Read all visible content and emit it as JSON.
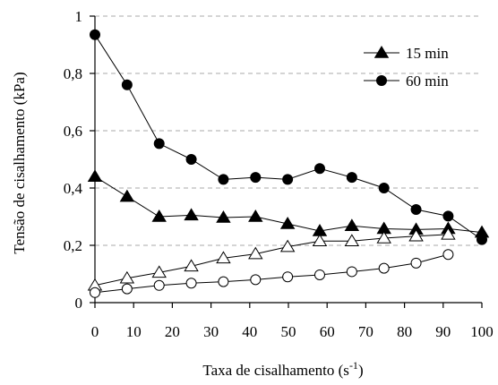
{
  "chart_data": {
    "type": "line",
    "xlabel": {
      "main": "Taxa de cisalhamento (s",
      "sup": "-1",
      "tail": ")"
    },
    "ylabel": "Tensão de cisalhamento (kPa)",
    "xlim": [
      0,
      100
    ],
    "ylim": [
      0,
      1
    ],
    "xticks": [
      0,
      10,
      20,
      30,
      40,
      50,
      60,
      70,
      80,
      90,
      100
    ],
    "yticks": [
      0,
      0.2,
      0.4,
      0.6,
      0.8,
      1
    ],
    "ytick_labels": [
      "0",
      "0,2",
      "0,4",
      "0,6",
      "0,8",
      "1"
    ],
    "grid": "horizontal-dashed",
    "legend_position": "top-right",
    "legend": [
      {
        "label": "15 min",
        "marker": "triangle-filled"
      },
      {
        "label": "60 min",
        "marker": "circle-filled"
      }
    ],
    "series": [
      {
        "name": "15 min",
        "marker": "triangle-filled",
        "x": [
          0,
          8.3,
          16.6,
          24.9,
          33.2,
          41.5,
          49.8,
          58.1,
          66.4,
          74.7,
          83,
          91.3,
          100
        ],
        "y": [
          0.44,
          0.37,
          0.3,
          0.305,
          0.297,
          0.3,
          0.275,
          0.25,
          0.268,
          0.258,
          0.255,
          0.258,
          0.245
        ]
      },
      {
        "name": "60 min",
        "marker": "circle-filled",
        "x": [
          0,
          8.3,
          16.6,
          24.9,
          33.2,
          41.5,
          49.8,
          58.1,
          66.4,
          74.7,
          83,
          91.3,
          100
        ],
        "y": [
          0.935,
          0.76,
          0.555,
          0.5,
          0.43,
          0.437,
          0.43,
          0.468,
          0.437,
          0.4,
          0.325,
          0.302,
          0.22
        ]
      },
      {
        "marker": "triangle-open",
        "x": [
          0,
          8.3,
          16.6,
          24.9,
          33.2,
          41.5,
          49.8,
          58.1,
          66.4,
          74.7,
          83,
          91.3
        ],
        "y": [
          0.06,
          0.085,
          0.105,
          0.127,
          0.155,
          0.17,
          0.195,
          0.215,
          0.215,
          0.225,
          0.232,
          0.238
        ]
      },
      {
        "marker": "circle-open",
        "x": [
          0,
          8.3,
          16.6,
          24.9,
          33.2,
          41.5,
          49.8,
          58.1,
          66.4,
          74.7,
          83,
          91.3
        ],
        "y": [
          0.035,
          0.048,
          0.06,
          0.068,
          0.073,
          0.08,
          0.09,
          0.097,
          0.108,
          0.12,
          0.138,
          0.168
        ]
      }
    ]
  }
}
